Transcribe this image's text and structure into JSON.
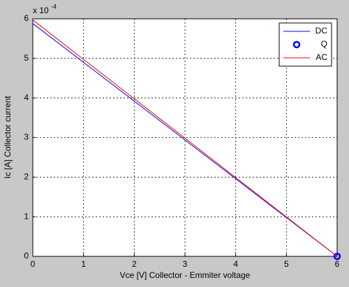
{
  "chart_data": {
    "type": "line",
    "x_label": "Vce [V]  Collector - Emmiter voltage",
    "y_label": "Ic [A]   Collector current",
    "y_exponent_base": "x 10",
    "y_exponent": "-4",
    "xlim": [
      0,
      6
    ],
    "xticks": [
      0,
      1,
      2,
      3,
      4,
      5,
      6
    ],
    "ylim": [
      0,
      6
    ],
    "yticks": [
      0,
      1,
      2,
      3,
      4,
      5,
      6
    ],
    "grid": true,
    "legend": "top-right",
    "series": [
      {
        "name": "DC",
        "color": "#0000ff",
        "style": "line",
        "x": [
          0,
          6
        ],
        "values": [
          5.88,
          0
        ]
      },
      {
        "name": "Q",
        "color": "#0000ff",
        "style": "marker",
        "x": [
          6
        ],
        "values": [
          0
        ]
      },
      {
        "name": "AC",
        "color": "#ff0000",
        "style": "line",
        "x": [
          0,
          6
        ],
        "values": [
          5.97,
          0
        ]
      }
    ]
  }
}
